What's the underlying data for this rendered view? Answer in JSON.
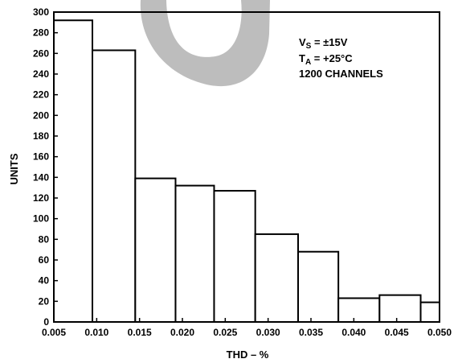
{
  "chart_data": {
    "type": "bar",
    "xlabel": "THD – %",
    "ylabel": "UNITS",
    "xlim": [
      0.005,
      0.05
    ],
    "ylim": [
      0,
      300
    ],
    "x_ticks": [
      "0.005",
      "0.010",
      "0.015",
      "0.020",
      "0.025",
      "0.030",
      "0.035",
      "0.040",
      "0.045",
      "0.050"
    ],
    "y_ticks": [
      "0",
      "20",
      "40",
      "60",
      "80",
      "100",
      "120",
      "140",
      "160",
      "180",
      "200",
      "220",
      "240",
      "260",
      "280",
      "300"
    ],
    "bins": [
      {
        "from": 0.005,
        "to": 0.0095,
        "value": 292
      },
      {
        "from": 0.0095,
        "to": 0.0145,
        "value": 263
      },
      {
        "from": 0.0145,
        "to": 0.0192,
        "value": 139
      },
      {
        "from": 0.0192,
        "to": 0.0237,
        "value": 132
      },
      {
        "from": 0.0237,
        "to": 0.0285,
        "value": 127
      },
      {
        "from": 0.0285,
        "to": 0.0335,
        "value": 85
      },
      {
        "from": 0.0335,
        "to": 0.0382,
        "value": 68
      },
      {
        "from": 0.0382,
        "to": 0.043,
        "value": 23
      },
      {
        "from": 0.043,
        "to": 0.0478,
        "value": 26
      },
      {
        "from": 0.0478,
        "to": 0.05,
        "value": 19
      }
    ],
    "annotation": {
      "vs_main": "V",
      "vs_sub": "S",
      "vs_value": " = ±15V",
      "ta_main": "T",
      "ta_sub": "A",
      "ta_value": " = +25°C",
      "channels": "1200 CHANNELS"
    },
    "grid": false,
    "colors": {
      "bar_fill": "#ffffff",
      "bar_stroke": "#000000",
      "watermark": "#bdbdbd"
    }
  }
}
